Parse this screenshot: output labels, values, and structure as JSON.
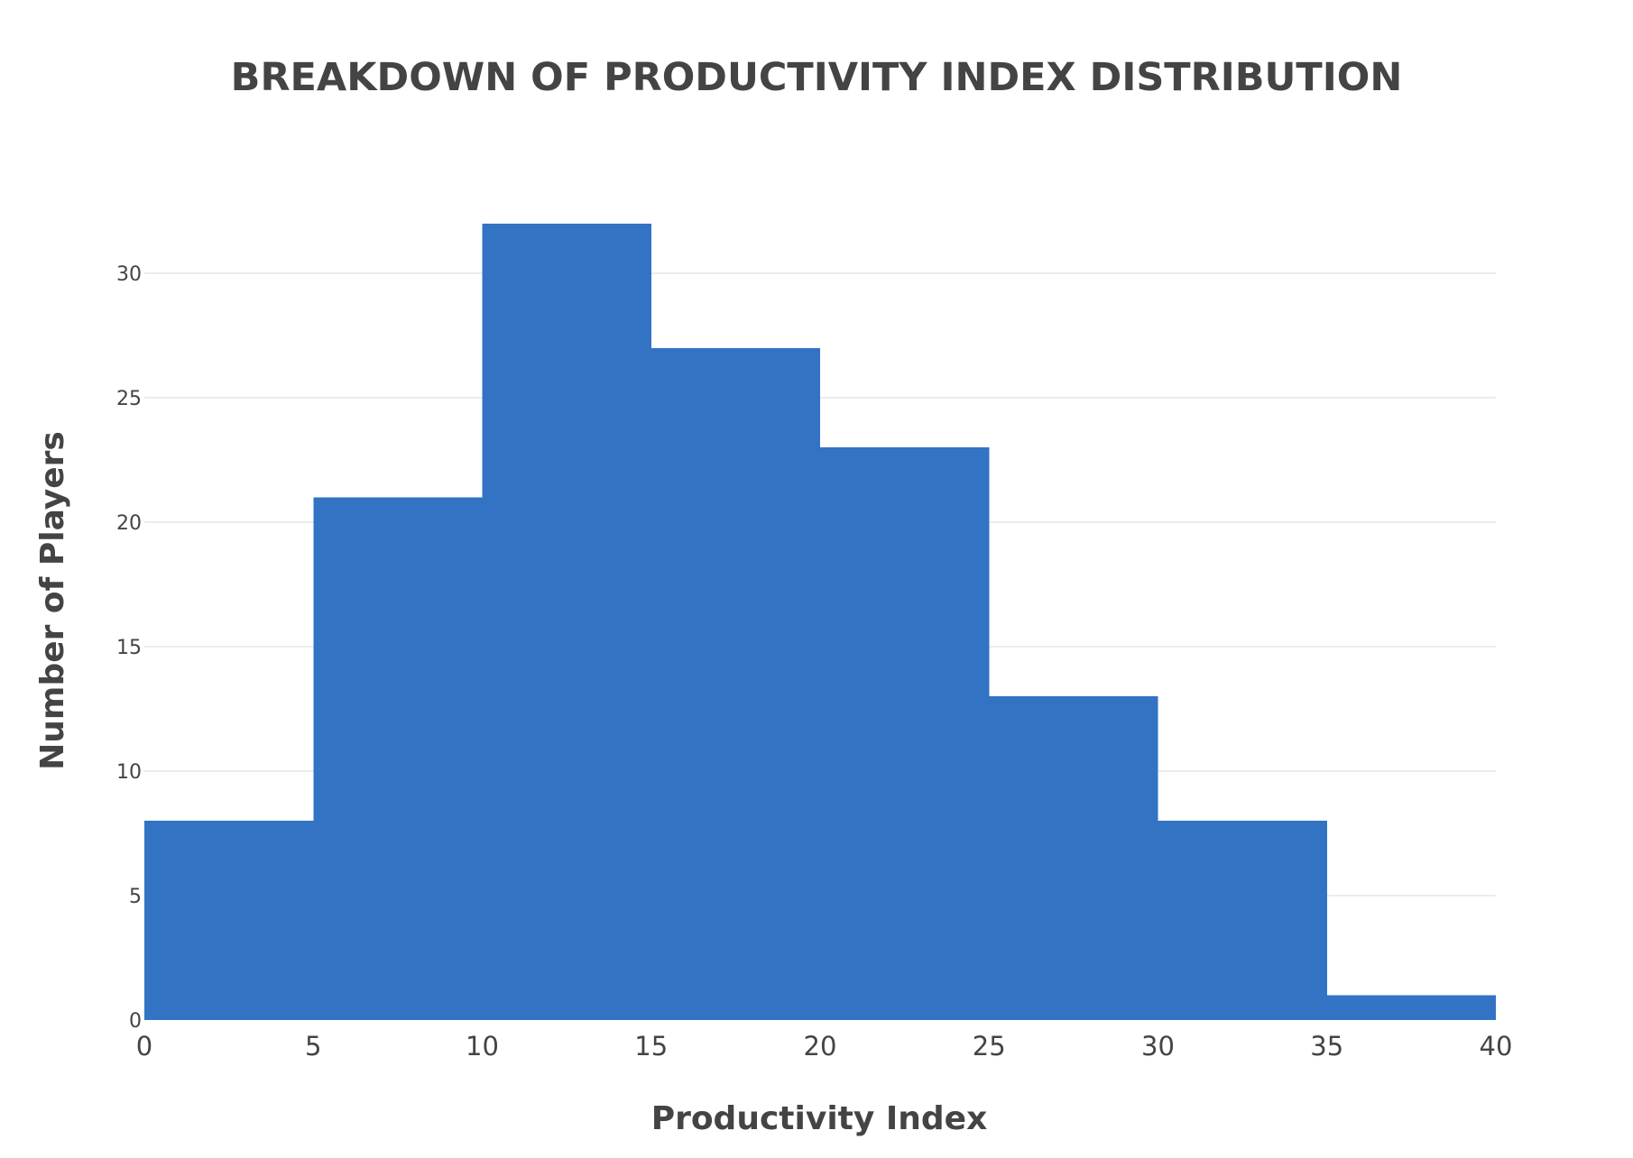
{
  "colors": {
    "bar": "#3273c4",
    "text": "#444444",
    "grid": "#e6e6e6",
    "background": "#ffffff"
  },
  "chart_data": {
    "type": "bar",
    "title": "BREAKDOWN OF PRODUCTIVITY INDEX DISTRIBUTION",
    "xlabel": "Productivity Index",
    "ylabel": "Number of Players",
    "bins": [
      {
        "start": 0,
        "end": 5,
        "count": 8
      },
      {
        "start": 5,
        "end": 10,
        "count": 21
      },
      {
        "start": 10,
        "end": 15,
        "count": 32
      },
      {
        "start": 15,
        "end": 20,
        "count": 27
      },
      {
        "start": 20,
        "end": 25,
        "count": 23
      },
      {
        "start": 25,
        "end": 30,
        "count": 13
      },
      {
        "start": 30,
        "end": 35,
        "count": 8
      },
      {
        "start": 35,
        "end": 40,
        "count": 1
      }
    ],
    "xlim": [
      0,
      40
    ],
    "ylim": [
      0,
      32
    ],
    "xticks": [
      "0",
      "5",
      "10",
      "15",
      "20",
      "25",
      "30",
      "35",
      "40"
    ],
    "yticks": [
      "0",
      "5",
      "10",
      "15",
      "20",
      "25",
      "30"
    ],
    "grid": true,
    "legend": "none"
  }
}
